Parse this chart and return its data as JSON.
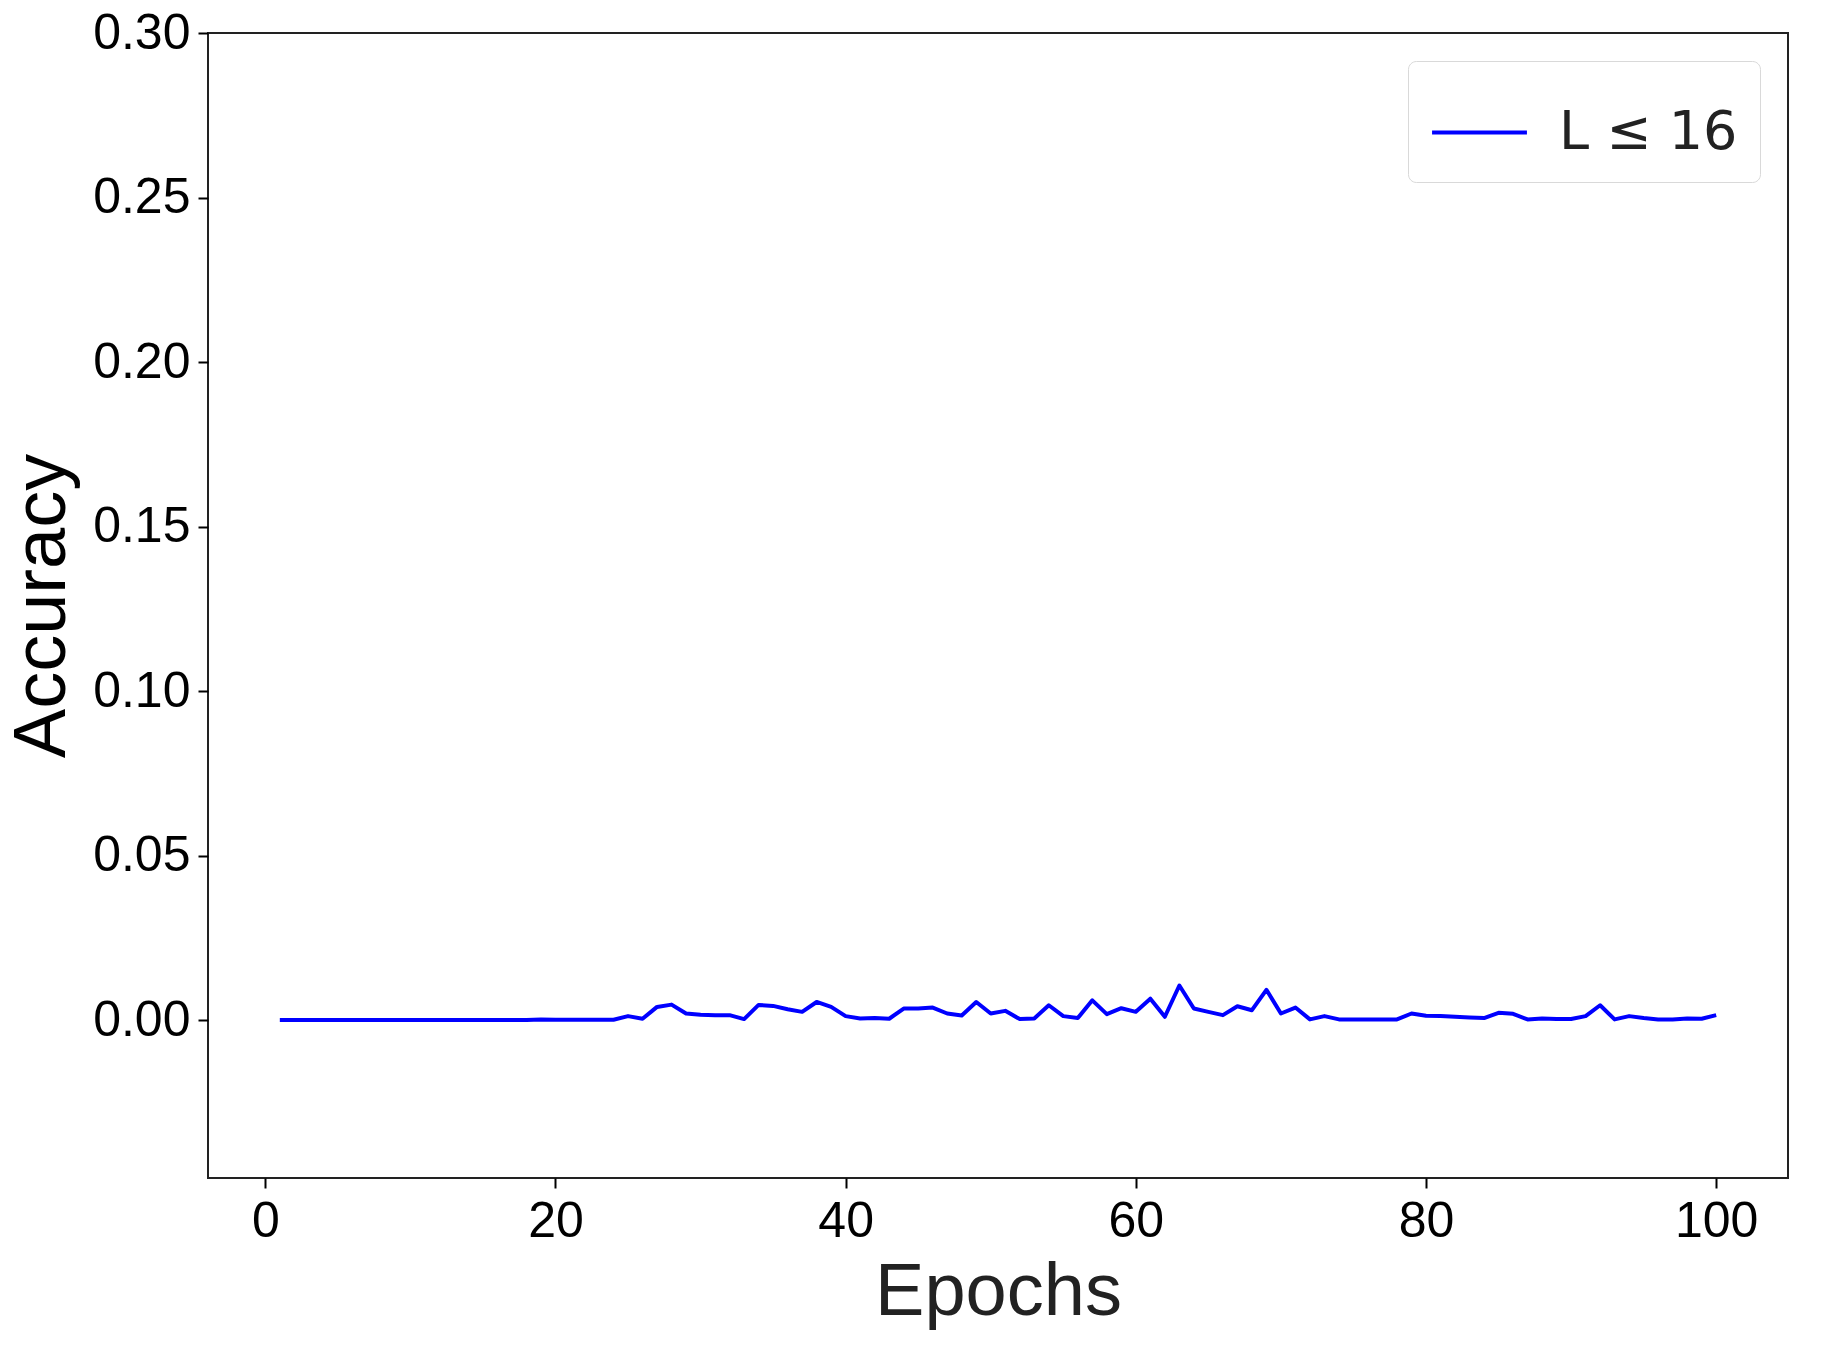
{
  "chart_data": {
    "type": "line",
    "xlabel": "Epochs",
    "ylabel": "Accuracy",
    "x": [
      1,
      2,
      3,
      4,
      5,
      6,
      7,
      8,
      9,
      10,
      11,
      12,
      13,
      14,
      15,
      16,
      17,
      18,
      19,
      20,
      21,
      22,
      23,
      24,
      25,
      26,
      27,
      28,
      29,
      30,
      31,
      32,
      33,
      34,
      35,
      36,
      37,
      38,
      39,
      40,
      41,
      42,
      43,
      44,
      45,
      46,
      47,
      48,
      49,
      50,
      51,
      52,
      53,
      54,
      55,
      56,
      57,
      58,
      59,
      60,
      61,
      62,
      63,
      64,
      65,
      66,
      67,
      68,
      69,
      70,
      71,
      72,
      73,
      74,
      75,
      76,
      77,
      78,
      79,
      80,
      81,
      82,
      83,
      84,
      85,
      86,
      87,
      88,
      89,
      90,
      91,
      92,
      93,
      94,
      95,
      96,
      97,
      98,
      99,
      100
    ],
    "series": [
      {
        "name": "L ≤ 16",
        "color": "#0000ff",
        "values": [
          0,
          0,
          0,
          0,
          0,
          0,
          0,
          0,
          0,
          0,
          0,
          0,
          0,
          0,
          0,
          0,
          0,
          0,
          0.0002,
          0.0001,
          0.0001,
          0.0001,
          0.0001,
          0.0001,
          0.0012,
          0.0004,
          0.004,
          0.0047,
          0.002,
          0.0016,
          0.0015,
          0.0015,
          0.0003,
          0.0046,
          0.0043,
          0.0033,
          0.0025,
          0.0055,
          0.004,
          0.0012,
          0.0005,
          0.0006,
          0.0004,
          0.0035,
          0.0035,
          0.0038,
          0.002,
          0.0014,
          0.0055,
          0.002,
          0.0028,
          0.0003,
          0.0005,
          0.0045,
          0.0012,
          0.0006,
          0.006,
          0.0018,
          0.0036,
          0.0025,
          0.0065,
          0.001,
          0.0105,
          0.0035,
          0.0025,
          0.0015,
          0.0042,
          0.003,
          0.0092,
          0.002,
          0.0038,
          0.0002,
          0.0012,
          0.0002,
          0.0002,
          0.0002,
          0.0002,
          0.0002,
          0.002,
          0.0013,
          0.0012,
          0.001,
          0.0008,
          0.0006,
          0.0022,
          0.0019,
          0.0002,
          0.0005,
          0.0003,
          0.0003,
          0.0012,
          0.0045,
          0.0002,
          0.0012,
          0.0006,
          0.0002,
          0.0002,
          0.0005,
          0.0004,
          0.0015
        ]
      }
    ],
    "xlim": [
      -3.95,
      104.95
    ],
    "xticks": [
      0,
      20,
      40,
      60,
      80,
      100
    ],
    "ylim": [
      -0.048,
      0.3
    ],
    "yticks": [
      {
        "value": 0,
        "label": "0.00"
      },
      {
        "value": 0.05,
        "label": "0.05"
      },
      {
        "value": 0.1,
        "label": "0.10"
      },
      {
        "value": 0.15,
        "label": "0.15"
      },
      {
        "value": 0.2,
        "label": "0.20"
      },
      {
        "value": 0.25,
        "label": "0.25"
      },
      {
        "value": 0.3,
        "label": "0.30"
      }
    ],
    "grid": false,
    "legend": "top right",
    "marker": "none",
    "line_style": "solid"
  }
}
